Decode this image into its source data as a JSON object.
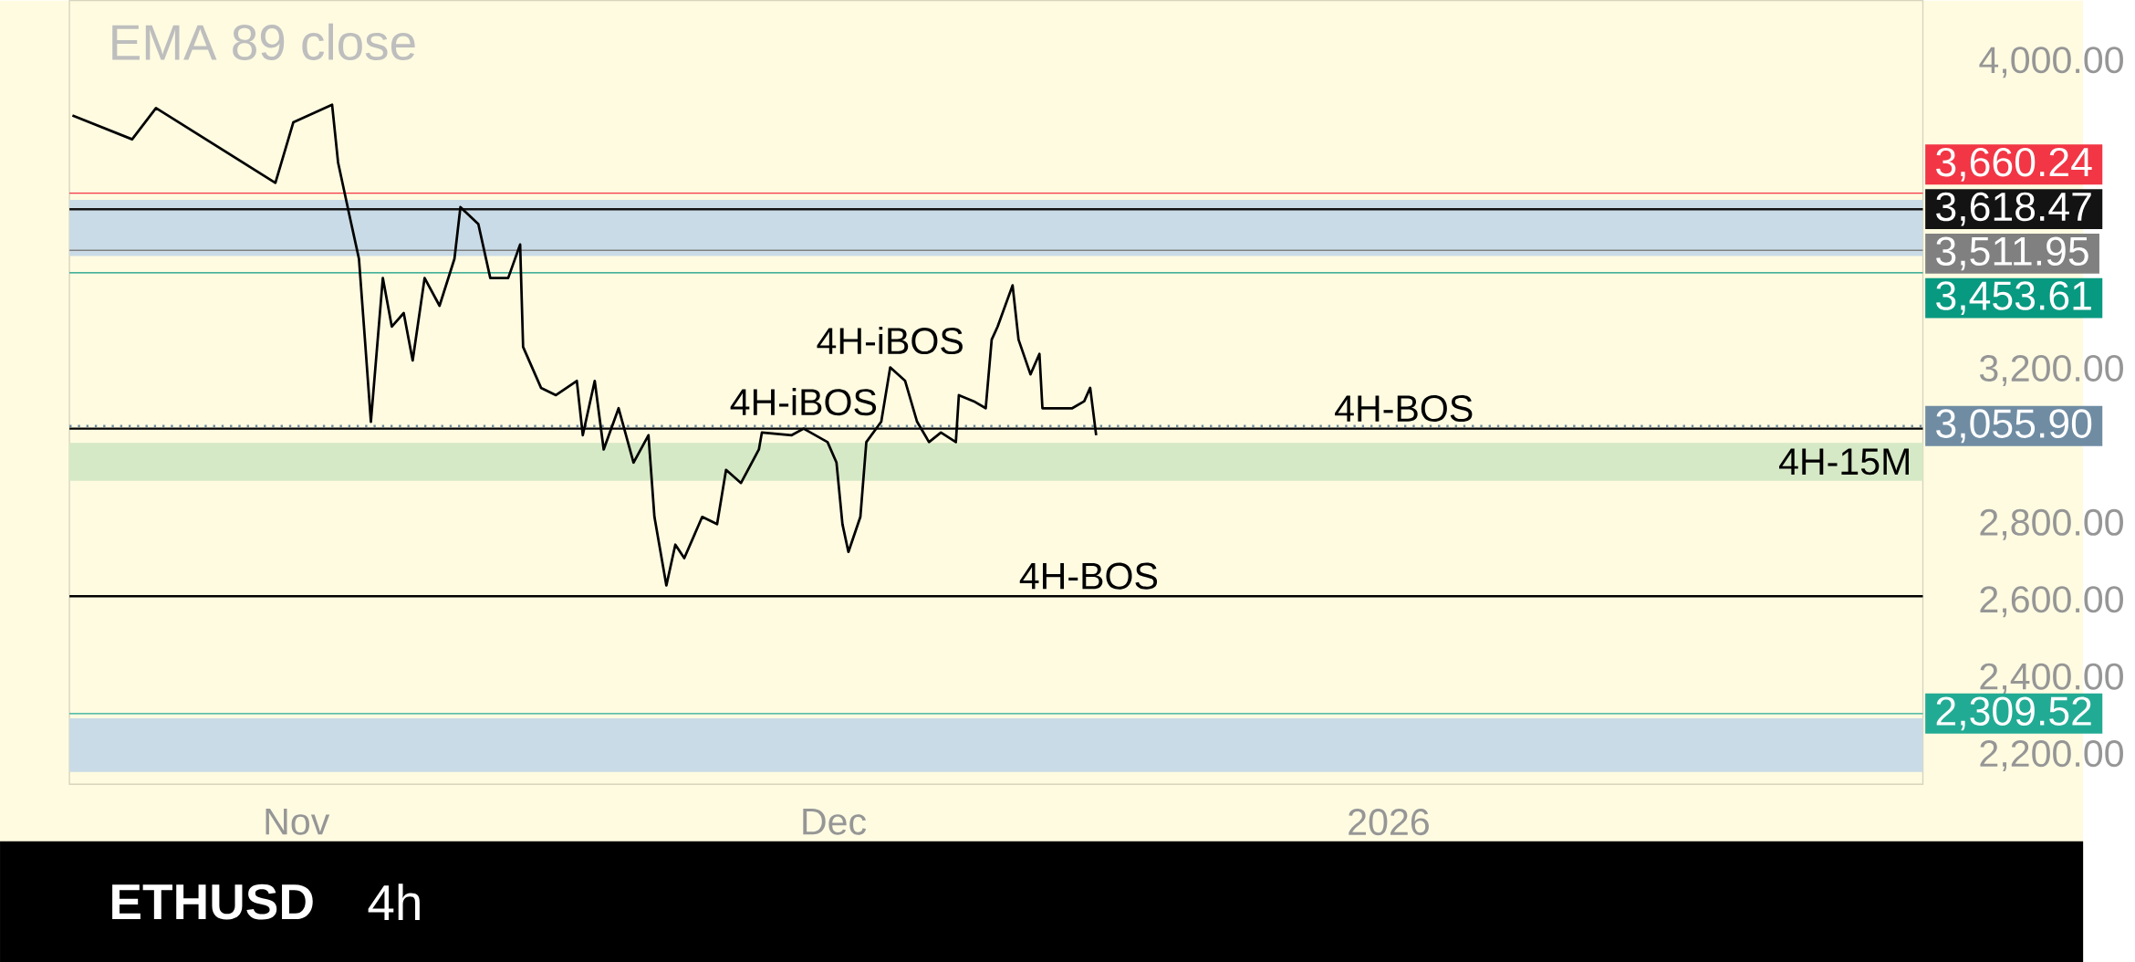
{
  "chart_data": {
    "type": "line",
    "title": "ETHUSD",
    "subtitle": "4h",
    "annotations": [
      "EMA 89 close",
      {
        "text": "4H-iBOS",
        "x": "2025-11-29T08:00",
        "y": 3049
      },
      {
        "text": "4H-iBOS",
        "x": "2025-12-04T04:00",
        "y": 3208
      }
    ],
    "xlim": [
      "2025-10-19T08:00",
      "2026-01-30T20:00"
    ],
    "xticks": [
      {
        "value": "2025-11-01",
        "label": "Nov"
      },
      {
        "value": "2025-12-01",
        "label": "Dec"
      },
      {
        "value": "2026-01-01",
        "label": "2026"
      }
    ],
    "ylim": [
      2126,
      4160
    ],
    "yticks": [
      {
        "value": 2200,
        "label": "2,200.00"
      },
      {
        "value": 2400,
        "label": "2,400.00"
      },
      {
        "value": 2600,
        "label": "2,600.00"
      },
      {
        "value": 2800,
        "label": "2,800.00"
      },
      {
        "value": 3200,
        "label": "3,200.00"
      },
      {
        "value": 4000,
        "label": "4,000.00"
      }
    ],
    "grid": false,
    "bands": [
      {
        "axis": "y",
        "from": 3497,
        "to": 3643,
        "color": "#c9dbe6"
      },
      {
        "axis": "y",
        "from": 2158,
        "to": 2297,
        "color": "#c9dbe6"
      },
      {
        "axis": "y",
        "from": 2914,
        "to": 3012,
        "color": "#d6e9c6",
        "label": "4H-15M"
      }
    ],
    "ref_lines": [
      {
        "axis": "y",
        "value": 3660.24,
        "label": "3,660.24",
        "color": "#f23645",
        "line_style": "solid"
      },
      {
        "axis": "y",
        "value": 3618.47,
        "label": "3,618.47",
        "color": "#131313",
        "line_style": "solid"
      },
      {
        "axis": "y",
        "value": 3511.95,
        "label": "3,511.95",
        "color": "#808080",
        "line_style": "solid"
      },
      {
        "axis": "y",
        "value": 3453.61,
        "label": "3,453.61",
        "color": "#089981",
        "line_style": "solid"
      },
      {
        "axis": "y",
        "value": 3055.9,
        "label": "3,055.90",
        "color": "#6f8ca3",
        "line_style": "dotted"
      },
      {
        "axis": "y",
        "value": 2309.52,
        "label": "2,309.52",
        "color": "#22ab94",
        "line_style": "solid"
      },
      {
        "axis": "y",
        "value": 3049,
        "label": "4H-BOS",
        "line_style": "solid"
      },
      {
        "axis": "y",
        "value": 2614,
        "label": "4H-BOS",
        "line_style": "solid"
      }
    ],
    "series": [
      {
        "color": "#000000",
        "x": [
          "2025-10-19T12:00",
          "2025-10-22T20:00",
          "2025-10-24T04:00",
          "2025-10-30T20:00",
          "2025-10-31T20:00",
          "2025-11-03T00:00",
          "2025-11-03T08:00",
          "2025-11-04T00:00",
          "2025-11-04T12:00",
          "2025-11-04T20:00",
          "2025-11-05T04:00",
          "2025-11-05T20:00",
          "2025-11-06T08:00",
          "2025-11-07T00:00",
          "2025-11-07T12:00",
          "2025-11-08T04:00",
          "2025-11-09T00:00",
          "2025-11-09T20:00",
          "2025-11-10T04:00",
          "2025-11-11T04:00",
          "2025-11-11T20:00",
          "2025-11-12T20:00",
          "2025-11-13T12:00",
          "2025-11-13T16:00",
          "2025-11-14T16:00",
          "2025-11-15T12:00",
          "2025-11-16T16:00",
          "2025-11-17T00:00",
          "2025-11-17T16:00",
          "2025-11-18T04:00",
          "2025-11-19T00:00",
          "2025-11-19T20:00",
          "2025-11-20T16:00",
          "2025-11-21T00:00",
          "2025-11-21T16:00",
          "2025-11-22T04:00",
          "2025-11-22T16:00",
          "2025-11-23T16:00",
          "2025-11-24T12:00",
          "2025-11-25T00:00",
          "2025-11-25T20:00",
          "2025-11-26T20:00",
          "2025-11-27T00:00",
          "2025-11-28T16:00",
          "2025-11-29T08:00",
          "2025-11-30T16:00",
          "2025-12-01T04:00",
          "2025-12-01T12:00",
          "2025-12-01T20:00",
          "2025-12-02T12:00",
          "2025-12-02T20:00",
          "2025-12-03T16:00",
          "2025-12-04T04:00",
          "2025-12-05T00:00",
          "2025-12-05T16:00",
          "2025-12-06T08:00",
          "2025-12-07T00:00",
          "2025-12-07T20:00",
          "2025-12-08T00:00",
          "2025-12-08T20:00",
          "2025-12-09T12:00",
          "2025-12-09T20:00",
          "2025-12-10T04:00",
          "2025-12-11T00:00",
          "2025-12-11T08:00",
          "2025-12-12T00:00",
          "2025-12-12T12:00",
          "2025-12-12T16:00",
          "2025-12-13T12:00",
          "2025-12-14T08:00",
          "2025-12-15T00:00",
          "2025-12-15T08:00",
          "2025-12-15T16:00"
        ],
        "values": [
          3862,
          3800,
          3881,
          3687,
          3844,
          3890,
          3740,
          3596,
          3490,
          3280,
          3067,
          3440,
          3314,
          3349,
          3226,
          3440,
          3368,
          3490,
          3624,
          3580,
          3440,
          3440,
          3527,
          3261,
          3155,
          3136,
          3173,
          3032,
          3173,
          2995,
          3102,
          2961,
          3032,
          2820,
          2642,
          2748,
          2713,
          2820,
          2801,
          2942,
          2908,
          2995,
          3039,
          3032,
          3049,
          3014,
          2961,
          2801,
          2729,
          2820,
          3014,
          3067,
          3208,
          3173,
          3067,
          3014,
          3039,
          3014,
          3136,
          3120,
          3102,
          3280,
          3314,
          3421,
          3280,
          3190,
          3243,
          3102,
          3102,
          3102,
          3120,
          3155,
          3032
        ]
      }
    ]
  }
}
